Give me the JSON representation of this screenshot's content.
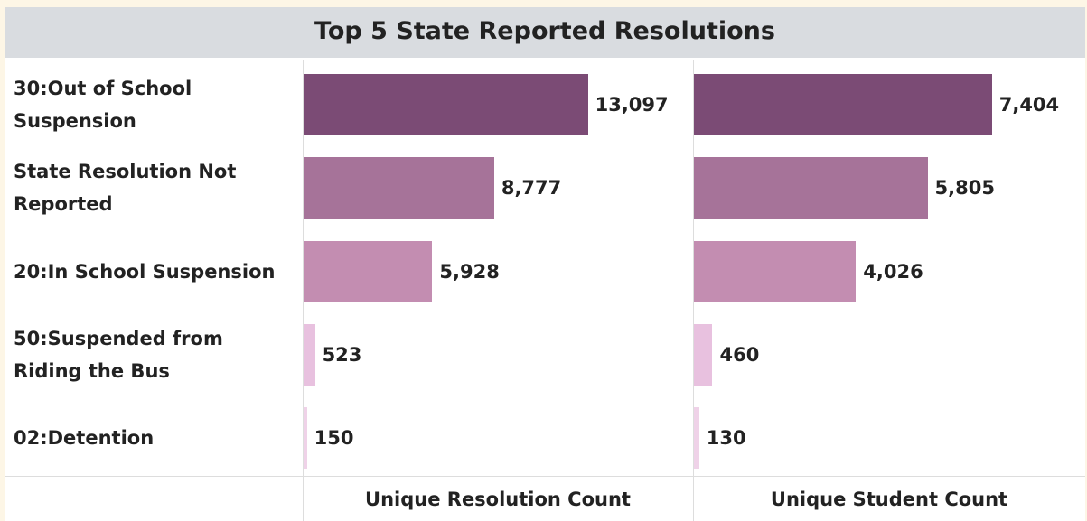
{
  "chart_data": {
    "type": "bar",
    "title": "Top 5 State Reported Resolutions",
    "categories": [
      "30:Out of School Suspension",
      "State Resolution Not Reported",
      "20:In School Suspension",
      "50:Suspended from Riding the Bus",
      "02:Detention"
    ],
    "colors": [
      "#7b4b75",
      "#a67399",
      "#c38db1",
      "#e8c1df",
      "#efd2e8"
    ],
    "series": [
      {
        "name": "Unique Resolution Count",
        "values": [
          13097,
          8777,
          5928,
          523,
          150
        ],
        "value_labels": [
          "13,097",
          "8,777",
          "5,928",
          "523",
          "150"
        ],
        "xlim": [
          0,
          17900
        ]
      },
      {
        "name": "Unique Student Count",
        "values": [
          7404,
          5805,
          4026,
          460,
          130
        ],
        "value_labels": [
          "7,404",
          "5,805",
          "4,026",
          "460",
          "130"
        ],
        "xlim": [
          0,
          9700
        ]
      }
    ]
  }
}
